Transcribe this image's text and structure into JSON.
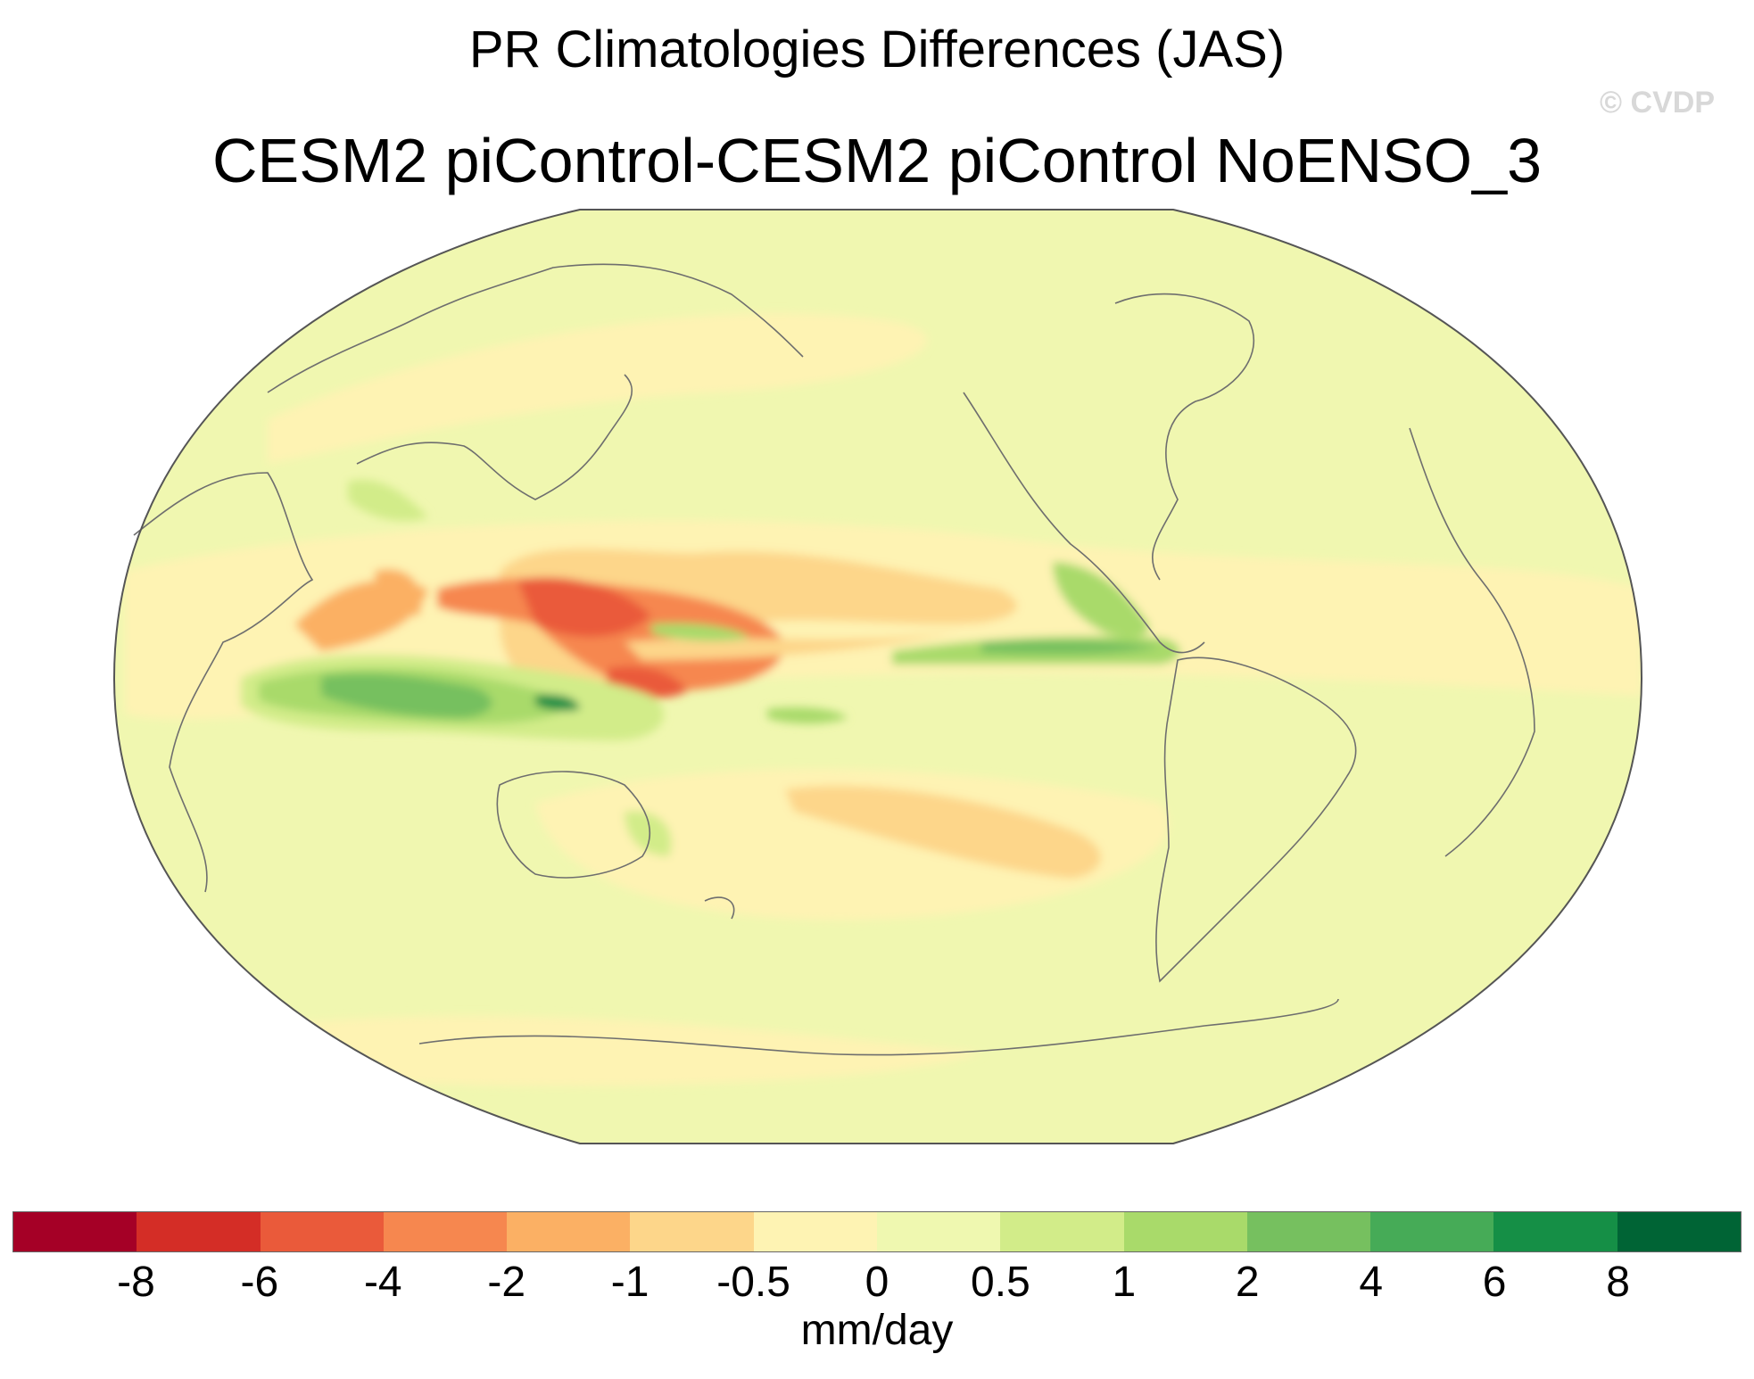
{
  "title": "PR Climatologies Differences (JAS)",
  "subtitle": "CESM2 piControl-CESM2 piControl NoENSO_3",
  "watermark": "© CVDP",
  "map": {
    "projection": "Robinson",
    "variable": "PR",
    "region": "global",
    "center_longitude": 180
  },
  "colorbar": {
    "colors": [
      "#a50026",
      "#d42d26",
      "#ea5a3a",
      "#f6874f",
      "#fbb064",
      "#fdd68a",
      "#fef3b3",
      "#eff8b0",
      "#d2ec89",
      "#a9da6a",
      "#76c05f",
      "#46ab57",
      "#158f46",
      "#006435"
    ],
    "labels": [
      "-8",
      "-6",
      "-4",
      "-2",
      "-1",
      "-0.5",
      "0",
      "0.5",
      "1",
      "2",
      "4",
      "6",
      "8"
    ],
    "units": "mm/day"
  }
}
